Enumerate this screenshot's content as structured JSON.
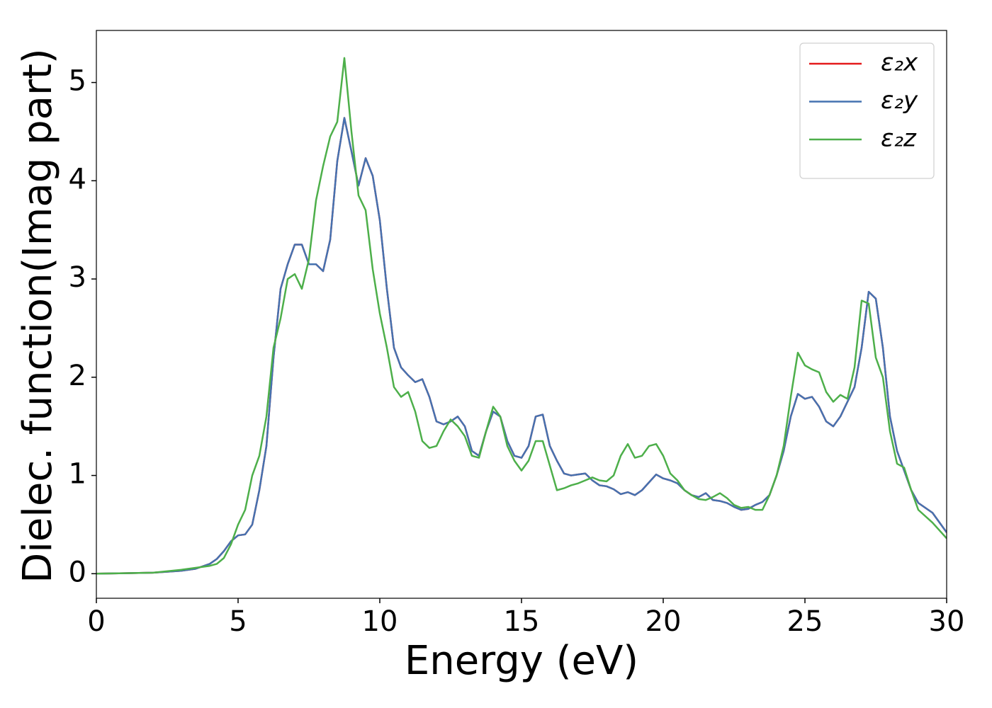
{
  "chart_data": {
    "type": "line",
    "xlabel": "Energy (eV)",
    "ylabel": "Dielec. function(Imag part)",
    "x": [
      0,
      1,
      2,
      3,
      3.5,
      4,
      4.25,
      4.5,
      4.75,
      5,
      5.25,
      5.5,
      5.75,
      6,
      6.25,
      6.5,
      6.75,
      7,
      7.25,
      7.5,
      7.75,
      8,
      8.25,
      8.5,
      8.75,
      9,
      9.25,
      9.5,
      9.75,
      10,
      10.25,
      10.5,
      10.75,
      11,
      11.25,
      11.5,
      11.75,
      12,
      12.25,
      12.5,
      12.75,
      13,
      13.25,
      13.5,
      13.75,
      14,
      14.25,
      14.5,
      14.75,
      15,
      15.25,
      15.5,
      15.75,
      16,
      16.25,
      16.5,
      16.75,
      17,
      17.25,
      17.5,
      17.75,
      18,
      18.25,
      18.5,
      18.75,
      19,
      19.25,
      19.5,
      19.75,
      20,
      20.25,
      20.5,
      20.75,
      21,
      21.25,
      21.5,
      21.75,
      22,
      22.25,
      22.5,
      22.75,
      23,
      23.25,
      23.5,
      23.75,
      24,
      24.25,
      24.5,
      24.75,
      25,
      25.25,
      25.5,
      25.75,
      26,
      26.25,
      26.5,
      26.75,
      27,
      27.25,
      27.5,
      27.75,
      28,
      28.25,
      28.5,
      28.75,
      29,
      29.5,
      30
    ],
    "series": [
      {
        "name": "ε₂x",
        "color": "#e41a1c",
        "values": [
          0,
          0.005,
          0.01,
          0.03,
          0.05,
          0.1,
          0.15,
          0.23,
          0.33,
          0.39,
          0.4,
          0.5,
          0.85,
          1.3,
          2.2,
          2.9,
          3.15,
          3.35,
          3.35,
          3.15,
          3.15,
          3.08,
          3.4,
          4.2,
          4.64,
          4.3,
          3.95,
          4.23,
          4.05,
          3.6,
          2.9,
          2.3,
          2.1,
          2.02,
          1.95,
          1.98,
          1.8,
          1.55,
          1.52,
          1.55,
          1.6,
          1.5,
          1.25,
          1.2,
          1.45,
          1.65,
          1.6,
          1.35,
          1.2,
          1.18,
          1.3,
          1.6,
          1.62,
          1.3,
          1.15,
          1.02,
          1.0,
          1.01,
          1.02,
          0.95,
          0.9,
          0.89,
          0.86,
          0.81,
          0.83,
          0.8,
          0.85,
          0.93,
          1.01,
          0.97,
          0.95,
          0.92,
          0.85,
          0.8,
          0.78,
          0.82,
          0.75,
          0.74,
          0.72,
          0.68,
          0.65,
          0.66,
          0.7,
          0.73,
          0.8,
          1.0,
          1.25,
          1.6,
          1.83,
          1.78,
          1.8,
          1.7,
          1.55,
          1.5,
          1.6,
          1.75,
          1.9,
          2.3,
          2.87,
          2.8,
          2.3,
          1.6,
          1.25,
          1.05,
          0.85,
          0.72,
          0.62,
          0.42
        ]
      },
      {
        "name": "ε₂y",
        "color": "#4572b0",
        "values": [
          0,
          0.005,
          0.01,
          0.03,
          0.05,
          0.1,
          0.15,
          0.23,
          0.33,
          0.39,
          0.4,
          0.5,
          0.85,
          1.3,
          2.2,
          2.9,
          3.15,
          3.35,
          3.35,
          3.15,
          3.15,
          3.08,
          3.4,
          4.2,
          4.64,
          4.3,
          3.95,
          4.23,
          4.05,
          3.6,
          2.9,
          2.3,
          2.1,
          2.02,
          1.95,
          1.98,
          1.8,
          1.55,
          1.52,
          1.55,
          1.6,
          1.5,
          1.25,
          1.2,
          1.45,
          1.65,
          1.6,
          1.35,
          1.2,
          1.18,
          1.3,
          1.6,
          1.62,
          1.3,
          1.15,
          1.02,
          1.0,
          1.01,
          1.02,
          0.95,
          0.9,
          0.89,
          0.86,
          0.81,
          0.83,
          0.8,
          0.85,
          0.93,
          1.01,
          0.97,
          0.95,
          0.92,
          0.85,
          0.8,
          0.78,
          0.82,
          0.75,
          0.74,
          0.72,
          0.68,
          0.65,
          0.66,
          0.7,
          0.73,
          0.8,
          1.0,
          1.25,
          1.6,
          1.83,
          1.78,
          1.8,
          1.7,
          1.55,
          1.5,
          1.6,
          1.75,
          1.9,
          2.3,
          2.87,
          2.8,
          2.3,
          1.6,
          1.25,
          1.05,
          0.85,
          0.72,
          0.62,
          0.42
        ]
      },
      {
        "name": "ε₂z",
        "color": "#4daf4a",
        "values": [
          0,
          0.005,
          0.01,
          0.04,
          0.06,
          0.08,
          0.1,
          0.16,
          0.3,
          0.5,
          0.65,
          1.0,
          1.2,
          1.6,
          2.3,
          2.6,
          3.0,
          3.05,
          2.9,
          3.2,
          3.8,
          4.15,
          4.45,
          4.6,
          5.25,
          4.5,
          3.85,
          3.7,
          3.1,
          2.65,
          2.3,
          1.9,
          1.8,
          1.85,
          1.65,
          1.35,
          1.28,
          1.3,
          1.45,
          1.57,
          1.5,
          1.4,
          1.2,
          1.18,
          1.45,
          1.7,
          1.6,
          1.3,
          1.15,
          1.05,
          1.15,
          1.35,
          1.35,
          1.1,
          0.85,
          0.87,
          0.9,
          0.92,
          0.95,
          0.98,
          0.95,
          0.94,
          1.0,
          1.2,
          1.32,
          1.18,
          1.2,
          1.3,
          1.32,
          1.2,
          1.02,
          0.95,
          0.85,
          0.8,
          0.76,
          0.75,
          0.78,
          0.82,
          0.77,
          0.7,
          0.67,
          0.68,
          0.65,
          0.65,
          0.8,
          1.0,
          1.3,
          1.8,
          2.25,
          2.12,
          2.08,
          2.05,
          1.85,
          1.75,
          1.82,
          1.78,
          2.1,
          2.78,
          2.75,
          2.2,
          2.0,
          1.45,
          1.12,
          1.08,
          0.85,
          0.65,
          0.52,
          0.36
        ]
      }
    ],
    "xlim": [
      0,
      30
    ],
    "xticks": [
      0,
      5,
      10,
      15,
      20,
      25,
      30
    ],
    "ylim": [
      -0.25,
      5.53
    ],
    "yticks": [
      0,
      1,
      2,
      3,
      4,
      5
    ],
    "grid": false,
    "legend": "upper right"
  }
}
